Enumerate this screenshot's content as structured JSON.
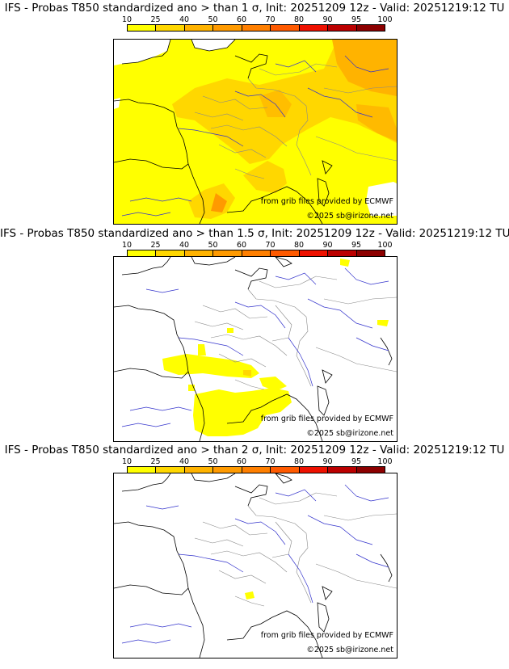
{
  "colorbar": {
    "labels": [
      "10",
      "25",
      "40",
      "50",
      "60",
      "70",
      "80",
      "90",
      "95",
      "100"
    ],
    "colors": [
      "#ffff00",
      "#ffd700",
      "#ffb300",
      "#ff9a00",
      "#ff7f00",
      "#ff5a00",
      "#ee1100",
      "#bb0000",
      "#8c0000",
      "#5a0000"
    ]
  },
  "panels": [
    {
      "title": "IFS - Probas T850  standardized ano > than 1 σ, Init: 20251209 12z - Valid: 20251219:12 TU",
      "source_text": "from grib files provided by ECMWF",
      "copyright_text": "©2025 sb@irizone.net"
    },
    {
      "title": "IFS - Probas T850  standardized ano > than 1.5 σ, Init: 20251209 12z - Valid: 20251219:12 TU",
      "source_text": "from grib files provided by ECMWF",
      "copyright_text": "©2025 sb@irizone.net"
    },
    {
      "title": "IFS - Probas T850  standardized ano > than 2 σ, Init: 20251209 12z - Valid: 20251219:12 TU",
      "source_text": "from grib files provided by ECMWF",
      "copyright_text": "©2025 sb@irizone.net"
    }
  ]
}
